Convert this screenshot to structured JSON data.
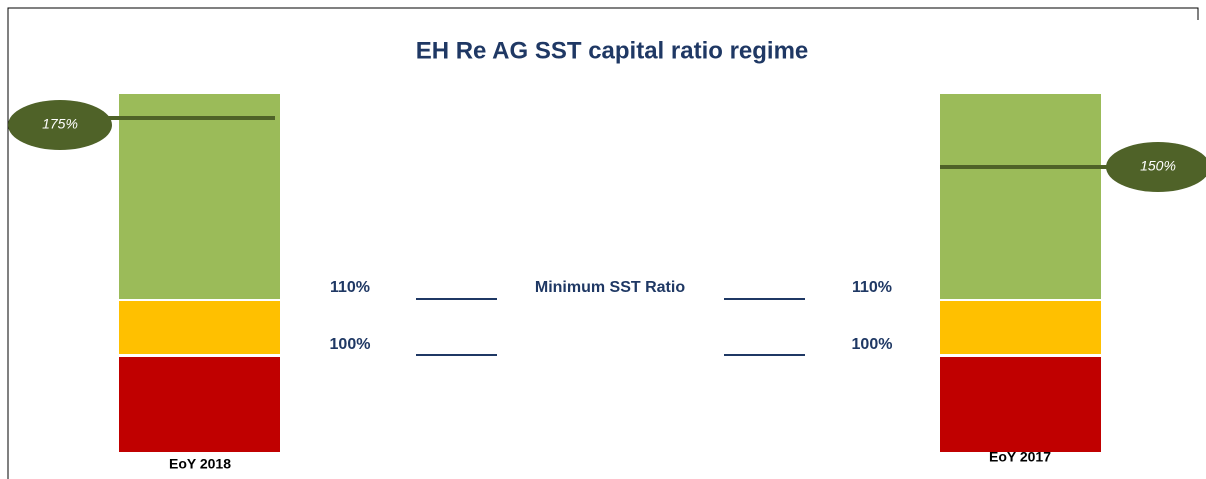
{
  "header": {
    "title": "EH Re AG SST capital ratio regime"
  },
  "bars": [
    {
      "label": "EoY 2018",
      "marker": "175%"
    },
    {
      "label": "EoY 2017",
      "marker": "150%"
    }
  ],
  "thresholds": {
    "upper": {
      "left": "110%",
      "caption": "Minimum SST Ratio",
      "right": "110%"
    },
    "lower": {
      "left": "100%",
      "right": "100%"
    }
  }
}
